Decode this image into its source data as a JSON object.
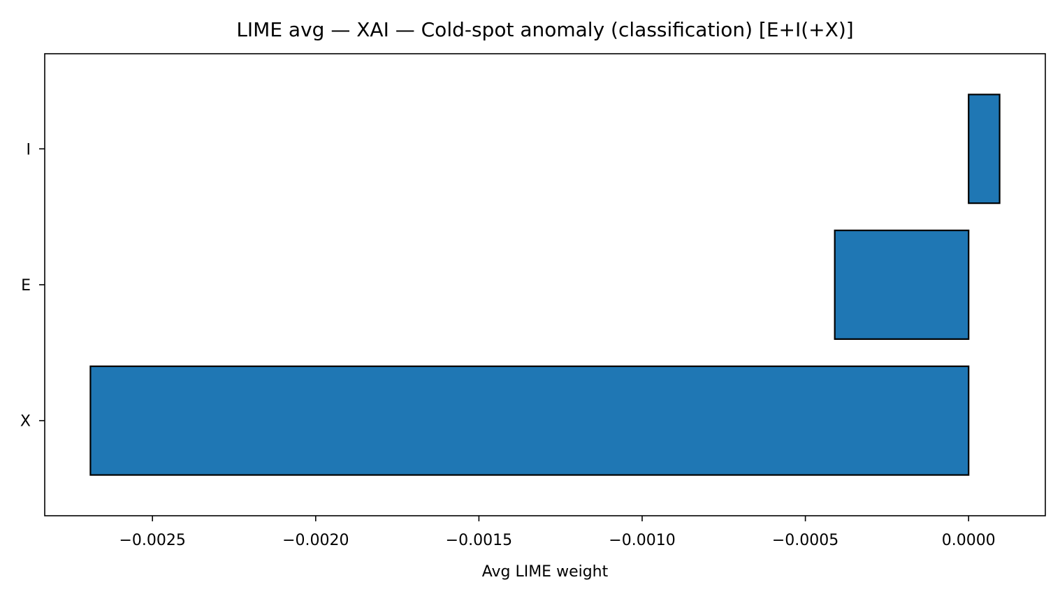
{
  "chart_data": {
    "type": "bar",
    "orientation": "horizontal",
    "title": "LIME avg — XAI — Cold-spot anomaly (classification) [E+I(+X)]",
    "xlabel": "Avg LIME weight",
    "ylabel": "",
    "categories": [
      "X",
      "E",
      "I"
    ],
    "values": [
      -0.00269,
      -0.00041,
      9.5e-05
    ],
    "xlim": [
      -0.00283,
      0.000235
    ],
    "xticks": [
      -0.0025,
      -0.002,
      -0.0015,
      -0.001,
      -0.0005,
      0.0
    ],
    "xtick_labels": [
      "−0.0025",
      "−0.0020",
      "−0.0015",
      "−0.0010",
      "−0.0005",
      "0.0000"
    ],
    "grid": false,
    "legend": false,
    "bar_color": "#1f77b4",
    "edge_color": "#000000"
  }
}
